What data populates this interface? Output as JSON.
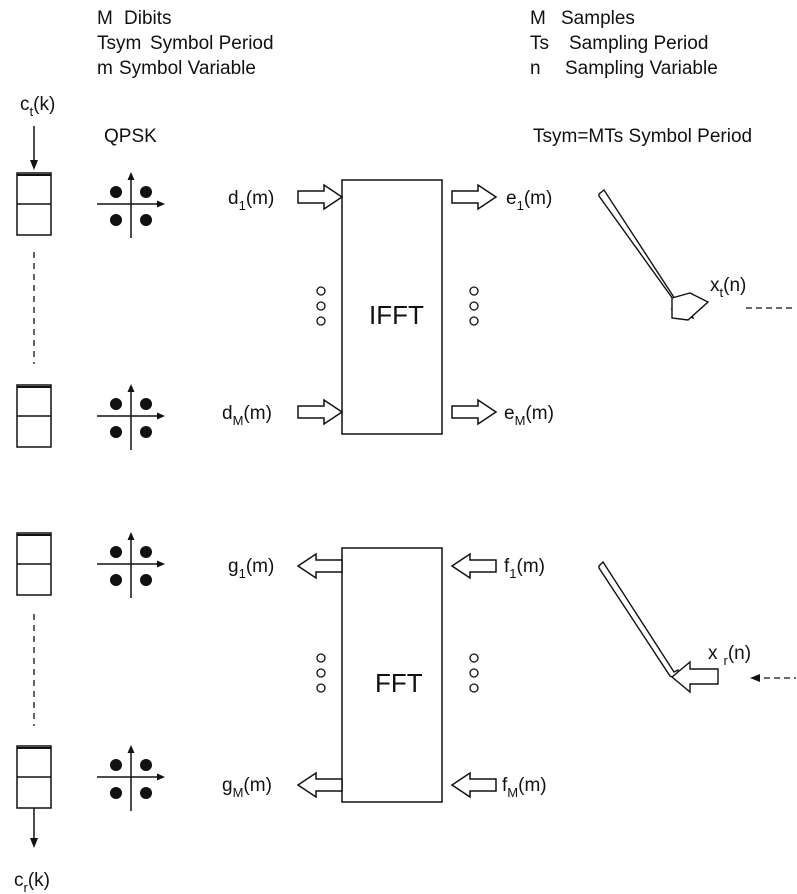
{
  "legend_left": [
    {
      "symbol": "M",
      "text": "Dibits"
    },
    {
      "symbol": "Tsym",
      "text": "Symbol Period"
    },
    {
      "symbol": "m",
      "text": "Symbol Variable"
    }
  ],
  "legend_right": [
    {
      "symbol": "M",
      "text": "Samples"
    },
    {
      "symbol": "Ts",
      "text": "Sampling Period"
    },
    {
      "symbol": "n",
      "text": "Sampling Variable"
    }
  ],
  "modulation_label": "QPSK",
  "symbol_period_note": "Tsym=MTs  Symbol Period",
  "ct": {
    "base": "c",
    "sub": "t",
    "arg": "(k)"
  },
  "cr": {
    "base": "c",
    "sub": "r",
    "arg": "(k)"
  },
  "ifft": {
    "label": "IFFT",
    "inputs": [
      {
        "base": "d",
        "sub": "1",
        "arg": "(m)"
      },
      {
        "base": "d",
        "sub": "M",
        "arg": "(m)"
      }
    ],
    "outputs": [
      {
        "base": "e",
        "sub": "1",
        "arg": "(m)"
      },
      {
        "base": "e",
        "sub": "M",
        "arg": "(m)"
      }
    ]
  },
  "fft": {
    "label": "FFT",
    "inputs": [
      {
        "base": "f",
        "sub": "1",
        "arg": "(m)"
      },
      {
        "base": "f",
        "sub": "M",
        "arg": "(m)"
      }
    ],
    "outputs": [
      {
        "base": "g",
        "sub": "1",
        "arg": "(m)"
      },
      {
        "base": "g",
        "sub": "M",
        "arg": "(m)"
      }
    ]
  },
  "xt": {
    "base": "x",
    "sub": "t",
    "arg": "(n)"
  },
  "xr": {
    "base": "x",
    "sub": "r",
    "arg": "(n)"
  }
}
